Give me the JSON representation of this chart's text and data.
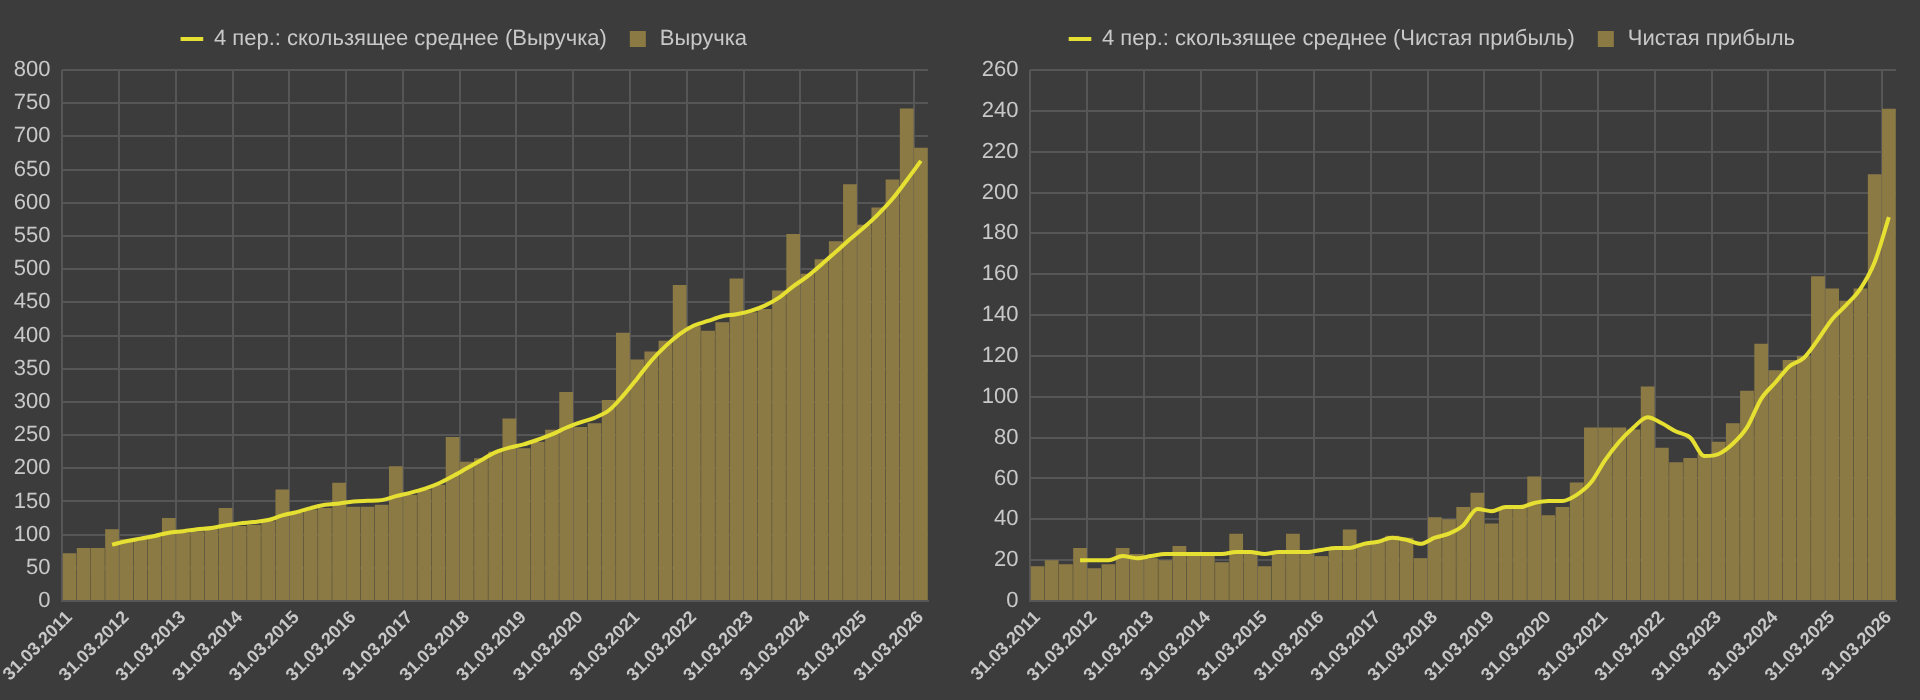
{
  "chart_data": [
    {
      "type": "bar",
      "categories": [
        "31.03.2011",
        null,
        null,
        null,
        "31.03.2012",
        null,
        null,
        null,
        "31.03.2013",
        null,
        null,
        null,
        "31.03.2014",
        null,
        null,
        null,
        "31.03.2015",
        null,
        null,
        null,
        "31.03.2016",
        null,
        null,
        null,
        "31.03.2017",
        null,
        null,
        null,
        "31.03.2018",
        null,
        null,
        null,
        "31.03.2019",
        null,
        null,
        null,
        "31.03.2020",
        null,
        null,
        null,
        "31.03.2021",
        null,
        null,
        null,
        "31.03.2022",
        null,
        null,
        null,
        "31.03.2023",
        null,
        null,
        null,
        "31.03.2024",
        null,
        null,
        null,
        "31.03.2025",
        null,
        null,
        null,
        "31.03.2026"
      ],
      "series": [
        {
          "name": "Выручка",
          "color": "#8c7a44",
          "values": [
            72,
            80,
            80,
            108,
            93,
            95,
            97,
            125,
            103,
            105,
            108,
            140,
            113,
            115,
            120,
            168,
            133,
            138,
            140,
            178,
            142,
            142,
            145,
            203,
            160,
            168,
            175,
            247,
            210,
            215,
            225,
            275,
            230,
            240,
            258,
            315,
            262,
            268,
            303,
            404,
            364,
            376,
            392,
            476,
            414,
            407,
            420,
            486,
            435,
            440,
            468,
            553,
            493,
            515,
            542,
            628,
            567,
            593,
            635,
            742,
            683
          ]
        },
        {
          "type": "line",
          "name": "4 пер.: скользящее среднее (Выручка)",
          "color": "#e6e032",
          "values": [
            null,
            null,
            null,
            85,
            90,
            94,
            98,
            103,
            105,
            108,
            110,
            114,
            117,
            119,
            122,
            129,
            134,
            140,
            145,
            147,
            150,
            151,
            152,
            158,
            163,
            169,
            177,
            188,
            200,
            212,
            224,
            231,
            236,
            243,
            251,
            261,
            269,
            276,
            287,
            309,
            335,
            362,
            384,
            402,
            415,
            422,
            429,
            432,
            437,
            445,
            457,
            474,
            489,
            507,
            526,
            545,
            563,
            583,
            606,
            634,
            663
          ]
        }
      ],
      "ylim": [
        0,
        800
      ],
      "yticks": [
        0,
        50,
        100,
        150,
        200,
        250,
        300,
        350,
        400,
        450,
        500,
        550,
        600,
        650,
        700,
        750,
        800
      ],
      "grid": true,
      "legend": "top"
    },
    {
      "type": "bar",
      "categories": [
        "31.03.2011",
        null,
        null,
        null,
        "31.03.2012",
        null,
        null,
        null,
        "31.03.2013",
        null,
        null,
        null,
        "31.03.2014",
        null,
        null,
        null,
        "31.03.2015",
        null,
        null,
        null,
        "31.03.2016",
        null,
        null,
        null,
        "31.03.2017",
        null,
        null,
        null,
        "31.03.2018",
        null,
        null,
        null,
        "31.03.2019",
        null,
        null,
        null,
        "31.03.2020",
        null,
        null,
        null,
        "31.03.2021",
        null,
        null,
        null,
        "31.03.2022",
        null,
        null,
        null,
        "31.03.2023",
        null,
        null,
        null,
        "31.03.2024",
        null,
        null,
        null,
        "31.03.2025",
        null,
        null,
        null,
        "31.03.2026"
      ],
      "series": [
        {
          "name": "Чистая прибыль",
          "color": "#8c7a44",
          "values": [
            17,
            20,
            18,
            26,
            16,
            18,
            26,
            23,
            21,
            20,
            27,
            23,
            22,
            19,
            33,
            23,
            17,
            23,
            33,
            23,
            22,
            25,
            35,
            28,
            29,
            32,
            31,
            21,
            41,
            40,
            46,
            53,
            38,
            46,
            46,
            61,
            42,
            46,
            58,
            85,
            85,
            85,
            84,
            105,
            75,
            68,
            70,
            72,
            78,
            87,
            103,
            126,
            113,
            118,
            120,
            159,
            153,
            147,
            153,
            209,
            241
          ]
        },
        {
          "type": "line",
          "name": "4 пер.: скользящее среднее (Чистая прибыль)",
          "color": "#e6e032",
          "values": [
            null,
            null,
            null,
            20,
            20,
            20,
            22,
            21,
            22,
            23,
            23,
            23,
            23,
            23,
            24,
            24,
            23,
            24,
            24,
            24,
            25,
            26,
            26,
            28,
            29,
            31,
            30,
            28,
            31,
            33,
            37,
            45,
            44,
            46,
            46,
            48,
            49,
            49,
            52,
            58,
            69,
            78,
            85,
            90,
            87,
            83,
            80,
            71,
            72,
            77,
            85,
            99,
            107,
            115,
            119,
            128,
            138,
            145,
            153,
            166,
            188
          ]
        }
      ],
      "ylim": [
        0,
        260
      ],
      "yticks": [
        0,
        20,
        40,
        60,
        80,
        100,
        120,
        140,
        160,
        180,
        200,
        220,
        240,
        260
      ],
      "grid": true,
      "legend": "top"
    }
  ]
}
